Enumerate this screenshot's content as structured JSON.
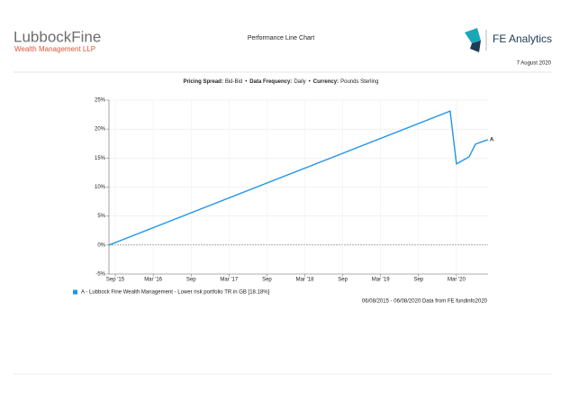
{
  "header": {
    "brand": "LubbockFine",
    "brand_sub": "Wealth Management LLP",
    "title": "Performance Line Chart",
    "provider": "FE Analytics",
    "date": "7 August 2020",
    "settings": [
      {
        "label": "Pricing Spread:",
        "value": "Bid-Bid"
      },
      {
        "label": "Data Frequency:",
        "value": "Daily"
      },
      {
        "label": "Currency:",
        "value": "Pounds Sterling"
      }
    ],
    "separator": "•"
  },
  "chart_data": {
    "type": "line",
    "x": [
      "2015-08",
      "2020-02",
      "2020-03",
      "2020-04",
      "2020-05",
      "2020-06",
      "2020-07",
      "2020-08"
    ],
    "series": [
      {
        "name": "A - Lubbock Fine Wealth Management - Lower risk portfolio TR in GB [18.18%]",
        "color": "#2196e8",
        "end_label": "A",
        "values": [
          0,
          23.1,
          14.0,
          14.6,
          15.2,
          17.4,
          17.8,
          18.18
        ]
      }
    ],
    "xlim": [
      "2015-08",
      "2020-08"
    ],
    "xticks": [
      {
        "value": "2015-09",
        "label": "Sep '15"
      },
      {
        "value": "2016-03",
        "label": "Mar '16"
      },
      {
        "value": "2016-09",
        "label": "Sep"
      },
      {
        "value": "2017-03",
        "label": "Mar '17"
      },
      {
        "value": "2017-09",
        "label": "Sep"
      },
      {
        "value": "2018-03",
        "label": "Mar '18"
      },
      {
        "value": "2018-09",
        "label": "Sep"
      },
      {
        "value": "2019-03",
        "label": "Mar '19"
      },
      {
        "value": "2019-09",
        "label": "Sep"
      },
      {
        "value": "2020-03",
        "label": "Mar '20"
      }
    ],
    "ylim": [
      -5,
      25
    ],
    "yticks": [
      {
        "value": -5,
        "label": "-5%"
      },
      {
        "value": 0,
        "label": "0%"
      },
      {
        "value": 5,
        "label": "5%"
      },
      {
        "value": 10,
        "label": "10%"
      },
      {
        "value": 15,
        "label": "15%"
      },
      {
        "value": 20,
        "label": "20%"
      },
      {
        "value": 25,
        "label": "25%"
      }
    ],
    "grid": true,
    "footnote": "06/08/2015 - 06/08/2020 Data from FE fundinfo2020"
  }
}
